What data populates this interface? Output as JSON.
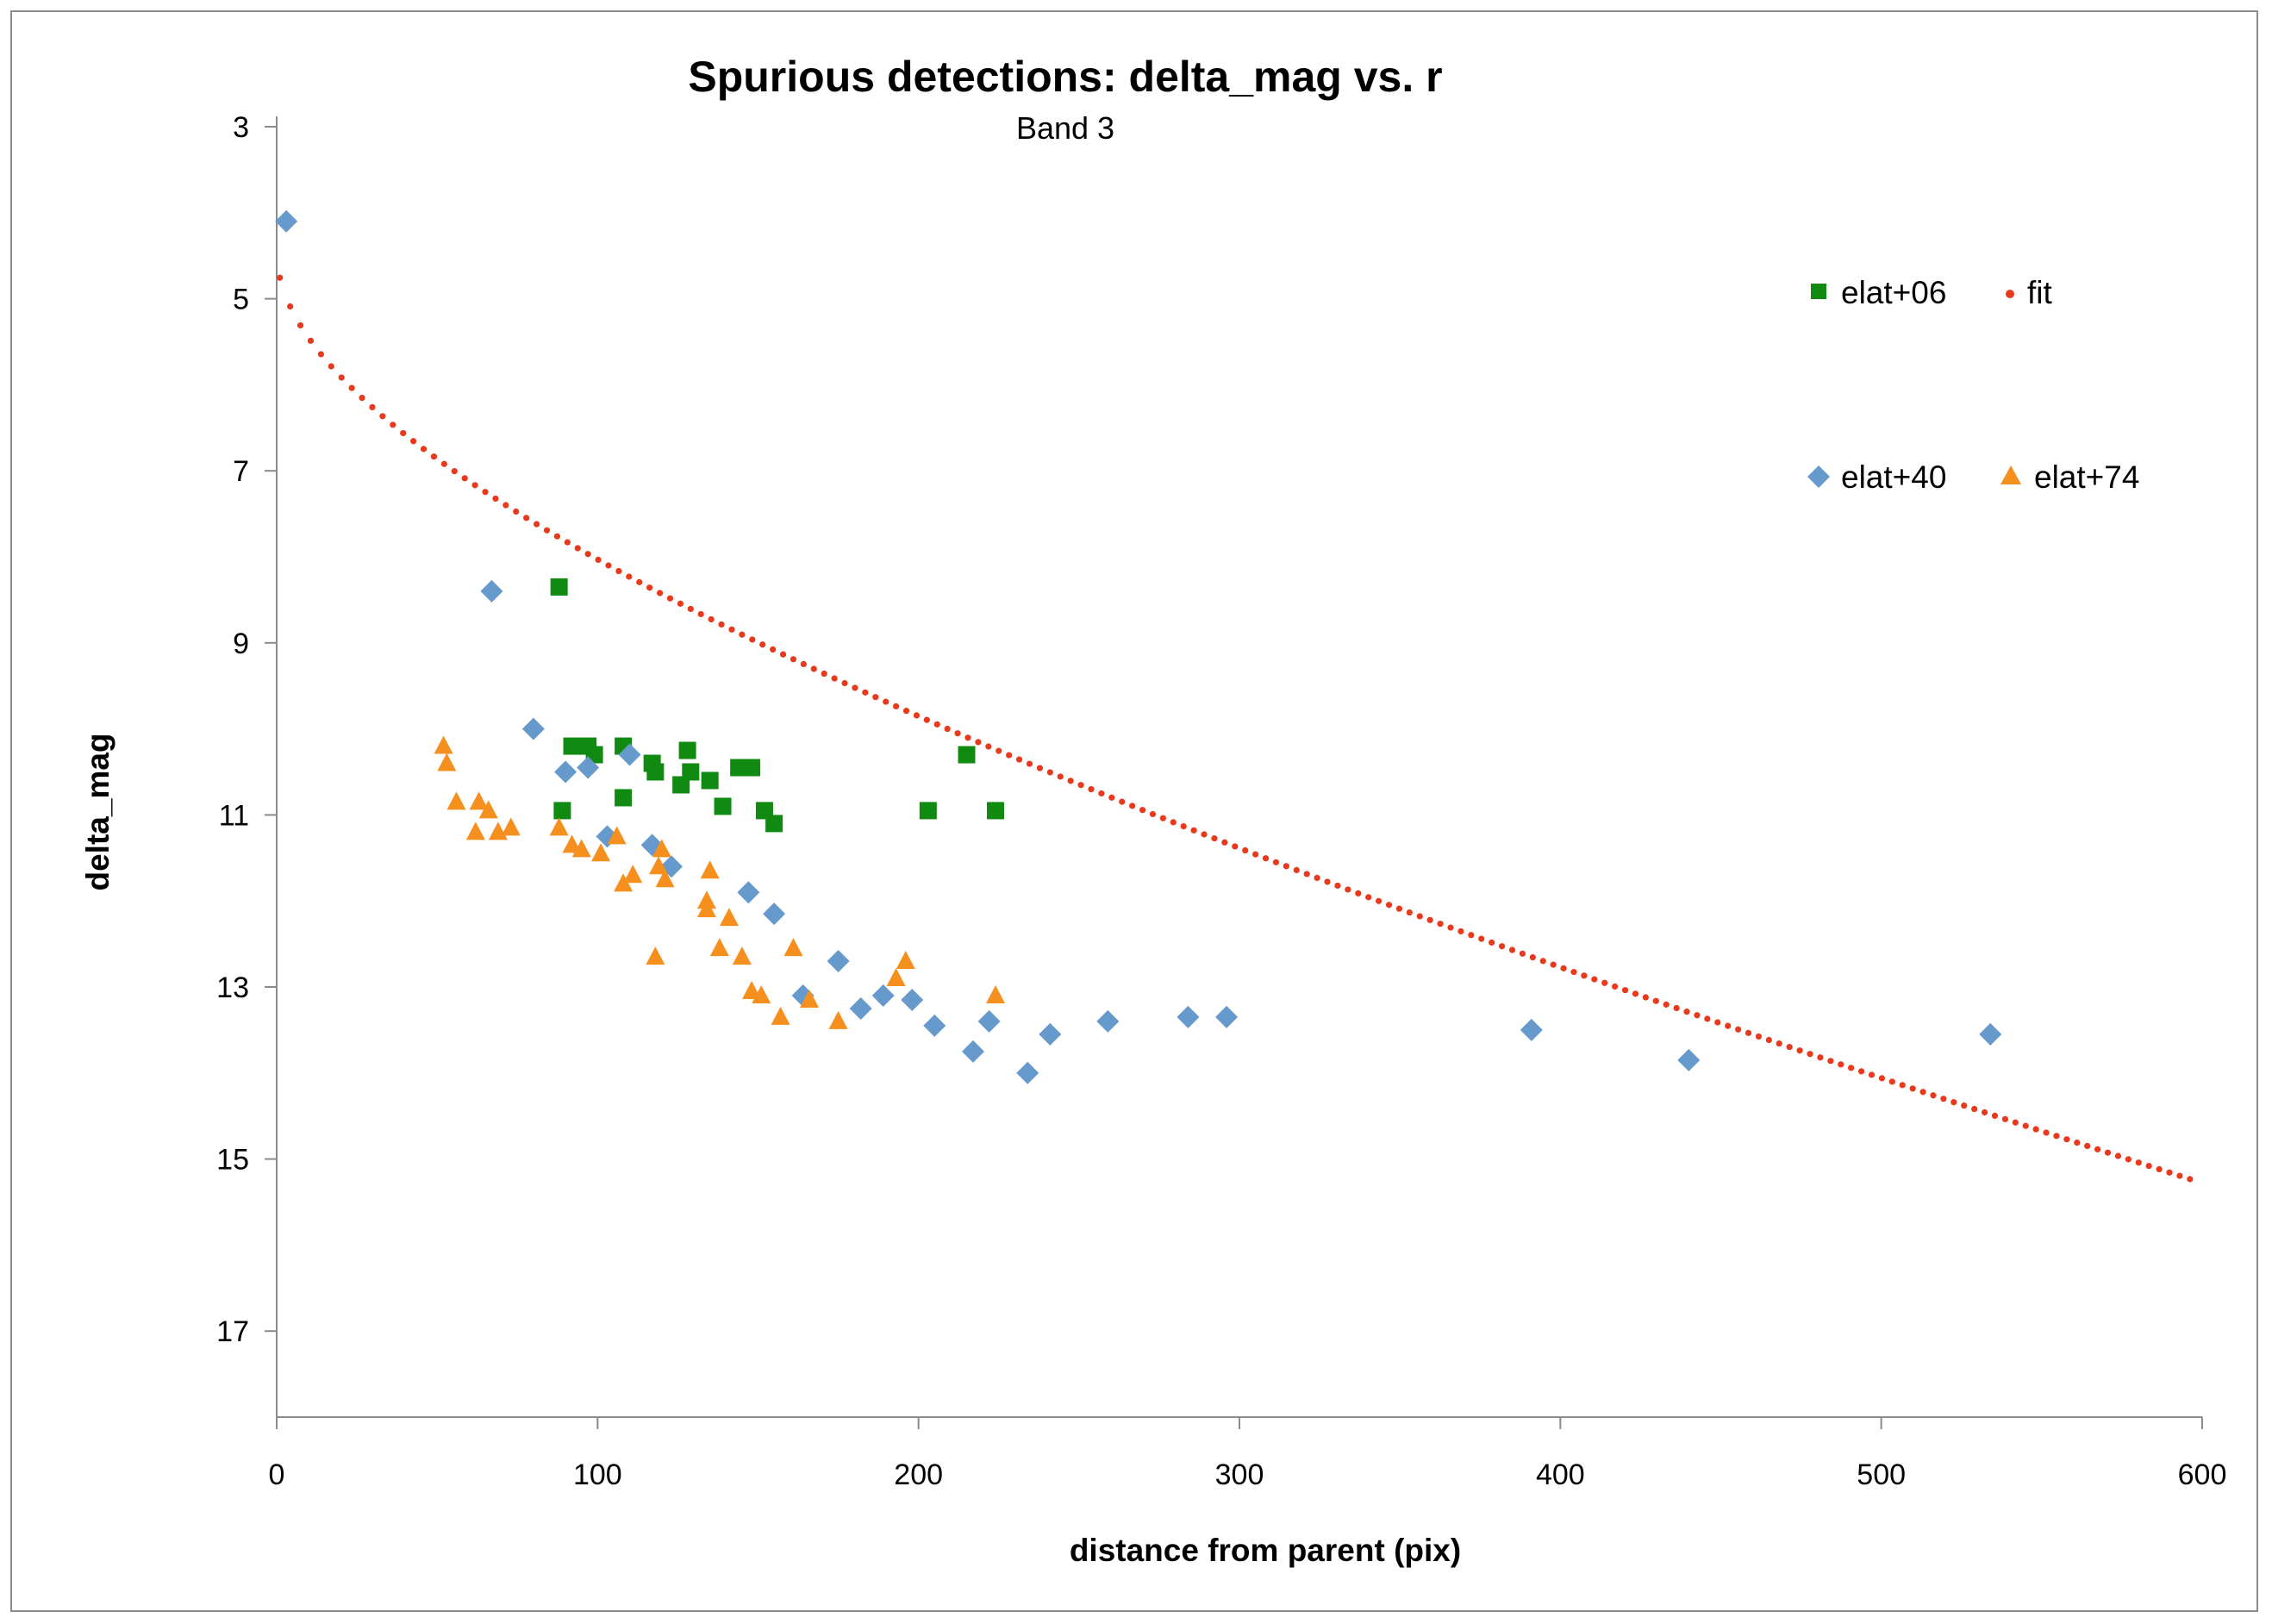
{
  "chart_data": {
    "type": "scatter",
    "title": "Spurious detections: delta_mag vs. r",
    "subtitle": "Band 3",
    "xlabel": "distance from parent (pix)",
    "ylabel": "delta_mag",
    "xlim": [
      0,
      600
    ],
    "ylim": [
      3,
      18
    ],
    "y_reversed": true,
    "x_ticks": [
      0,
      100,
      200,
      300,
      400,
      500,
      600
    ],
    "y_ticks": [
      3,
      5,
      7,
      9,
      11,
      13,
      15,
      17
    ],
    "grid": false,
    "legend_position": "top-right",
    "series": [
      {
        "name": "elat+06",
        "marker": "square",
        "color": "#108a10",
        "points": [
          [
            88,
            8.35
          ],
          [
            89,
            10.95
          ],
          [
            92,
            10.2
          ],
          [
            97,
            10.2
          ],
          [
            99,
            10.3
          ],
          [
            108,
            10.2
          ],
          [
            108,
            10.8
          ],
          [
            117,
            10.4
          ],
          [
            118,
            10.5
          ],
          [
            126,
            10.65
          ],
          [
            128,
            10.25
          ],
          [
            129,
            10.5
          ],
          [
            135,
            10.6
          ],
          [
            139,
            10.9
          ],
          [
            144,
            10.45
          ],
          [
            148,
            10.45
          ],
          [
            152,
            10.95
          ],
          [
            155,
            11.1
          ],
          [
            203,
            10.95
          ],
          [
            215,
            10.3
          ],
          [
            224,
            10.95
          ]
        ]
      },
      {
        "name": "elat+40",
        "marker": "diamond",
        "color": "#6699cc",
        "points": [
          [
            3,
            4.1
          ],
          [
            67,
            8.4
          ],
          [
            80,
            10.0
          ],
          [
            90,
            10.5
          ],
          [
            97,
            10.45
          ],
          [
            103,
            11.25
          ],
          [
            110,
            10.3
          ],
          [
            117,
            11.35
          ],
          [
            123,
            11.6
          ],
          [
            147,
            11.9
          ],
          [
            155,
            12.15
          ],
          [
            164,
            13.1
          ],
          [
            175,
            12.7
          ],
          [
            182,
            13.25
          ],
          [
            189,
            13.1
          ],
          [
            198,
            13.15
          ],
          [
            205,
            13.45
          ],
          [
            217,
            13.75
          ],
          [
            222,
            13.4
          ],
          [
            234,
            14.0
          ],
          [
            241,
            13.55
          ],
          [
            259,
            13.4
          ],
          [
            284,
            13.35
          ],
          [
            296,
            13.35
          ],
          [
            391,
            13.5
          ],
          [
            440,
            13.85
          ],
          [
            534,
            13.55
          ]
        ]
      },
      {
        "name": "elat+74",
        "marker": "triangle",
        "color": "#f5901e",
        "points": [
          [
            52,
            10.2
          ],
          [
            53,
            10.4
          ],
          [
            56,
            10.85
          ],
          [
            62,
            11.2
          ],
          [
            63,
            10.85
          ],
          [
            66,
            10.95
          ],
          [
            69,
            11.2
          ],
          [
            73,
            11.15
          ],
          [
            88,
            11.15
          ],
          [
            92,
            11.35
          ],
          [
            95,
            11.4
          ],
          [
            101,
            11.45
          ],
          [
            106,
            11.25
          ],
          [
            108,
            11.8
          ],
          [
            111,
            11.7
          ],
          [
            118,
            12.65
          ],
          [
            119,
            11.6
          ],
          [
            120,
            11.4
          ],
          [
            121,
            11.75
          ],
          [
            134,
            12.0
          ],
          [
            134,
            12.1
          ],
          [
            135,
            11.65
          ],
          [
            138,
            12.55
          ],
          [
            141,
            12.2
          ],
          [
            145,
            12.65
          ],
          [
            148,
            13.05
          ],
          [
            151,
            13.1
          ],
          [
            157,
            13.35
          ],
          [
            161,
            12.55
          ],
          [
            166,
            13.15
          ],
          [
            175,
            13.4
          ],
          [
            193,
            12.9
          ],
          [
            196,
            12.7
          ],
          [
            224,
            13.1
          ]
        ]
      },
      {
        "name": "fit",
        "marker": "dotted-line",
        "color": "#e8391c",
        "formula_points": "generated from fit curve"
      }
    ]
  }
}
